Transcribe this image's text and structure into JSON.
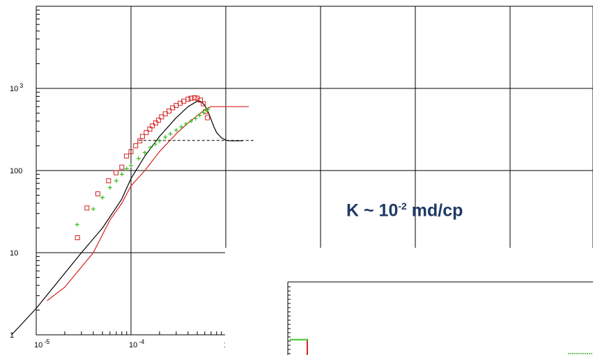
{
  "chart_data": {
    "type": "scatter",
    "xscale": "log",
    "yscale": "log",
    "xlim": [
      5e-06,
      0.002
    ],
    "ylim": [
      1,
      10000
    ],
    "x_tick_labels": [
      {
        "base": "10",
        "exp": "-5"
      },
      {
        "base": "10",
        "exp": "-4"
      },
      {
        "base": "1",
        "exp": ""
      }
    ],
    "y_tick_labels": [
      {
        "base": "10",
        "exp": "3"
      },
      {
        "base": "100",
        "exp": ""
      },
      {
        "base": "10",
        "exp": ""
      },
      {
        "base": "1",
        "exp": ""
      }
    ],
    "annotation": {
      "text_pre": "K ~ 10",
      "text_sup": "-2",
      "text_post": " md/cp"
    },
    "grid": true,
    "series": [
      {
        "kind": "line",
        "color": "#000000",
        "points": [
          [
            5.5e-06,
            1
          ],
          [
            1e-05,
            2.1
          ],
          [
            3e-05,
            10
          ],
          [
            5e-05,
            20
          ],
          [
            8e-05,
            45
          ],
          [
            0.0001,
            80
          ],
          [
            0.00014,
            150
          ],
          [
            0.0002,
            260
          ],
          [
            0.0003,
            440
          ],
          [
            0.0004,
            600
          ],
          [
            0.0005,
            700
          ],
          [
            0.00055,
            690
          ],
          [
            0.0006,
            620
          ],
          [
            0.00065,
            520
          ],
          [
            0.0007,
            420
          ],
          [
            0.00075,
            340
          ],
          [
            0.0008,
            290
          ],
          [
            0.0009,
            250
          ],
          [
            0.001,
            235
          ],
          [
            0.00109,
            230
          ],
          [
            0.0015,
            230
          ]
        ]
      },
      {
        "kind": "line",
        "color": "#d62020",
        "points": [
          [
            1.3e-05,
            2.6
          ],
          [
            2e-05,
            3.8
          ],
          [
            4e-05,
            10
          ],
          [
            6e-05,
            25
          ],
          [
            8e-05,
            40
          ],
          [
            0.0001,
            65
          ],
          [
            0.00014,
            100
          ],
          [
            0.0002,
            170
          ],
          [
            0.0003,
            280
          ],
          [
            0.0004,
            380
          ],
          [
            0.0006,
            550
          ],
          [
            0.0007,
            600
          ],
          [
            0.0012,
            600
          ],
          [
            0.00175,
            600
          ]
        ]
      },
      {
        "kind": "line",
        "color": "#808080",
        "dashed": true,
        "points": [
          [
            0.00012,
            233
          ],
          [
            0.002,
            233
          ]
        ]
      },
      {
        "kind": "markers",
        "marker": "square",
        "color": "#d62020",
        "points": [
          [
            2.72e-05,
            15.2
          ],
          [
            3.43e-05,
            35
          ],
          [
            4.47e-05,
            52
          ],
          [
            5.8e-05,
            75
          ],
          [
            6.95e-05,
            94
          ],
          [
            8e-05,
            110
          ],
          [
            8.97e-05,
            150
          ],
          [
            0.0001,
            170
          ],
          [
            0.000112,
            200
          ],
          [
            0.000124,
            230
          ],
          [
            0.000132,
            260
          ],
          [
            0.000145,
            290
          ],
          [
            0.000158,
            320
          ],
          [
            0.000168,
            350
          ],
          [
            0.000182,
            380
          ],
          [
            0.000195,
            410
          ],
          [
            0.00021,
            450
          ],
          [
            0.00023,
            490
          ],
          [
            0.000252,
            530
          ],
          [
            0.000275,
            580
          ],
          [
            0.0003,
            620
          ],
          [
            0.00033,
            660
          ],
          [
            0.00036,
            700
          ],
          [
            0.0004,
            740
          ],
          [
            0.00043,
            760
          ],
          [
            0.00047,
            770
          ],
          [
            0.0005,
            760
          ],
          [
            0.00054,
            720
          ],
          [
            0.00058,
            650
          ],
          [
            0.00061,
            520
          ],
          [
            0.00064,
            440
          ]
        ]
      },
      {
        "kind": "markers",
        "marker": "plus",
        "color": "#3cbe28",
        "points": [
          [
            2.7e-05,
            22
          ],
          [
            4e-05,
            34
          ],
          [
            5e-05,
            47
          ],
          [
            6e-05,
            62
          ],
          [
            7e-05,
            75
          ],
          [
            8e-05,
            90
          ],
          [
            9e-05,
            105
          ],
          [
            0.0001,
            115
          ],
          [
            0.00012,
            140
          ],
          [
            0.00014,
            165
          ],
          [
            0.00016,
            190
          ],
          [
            0.00018,
            210
          ],
          [
            0.0002,
            230
          ],
          [
            0.00023,
            255
          ],
          [
            0.00026,
            280
          ],
          [
            0.0003,
            310
          ],
          [
            0.00034,
            340
          ],
          [
            0.00038,
            370
          ],
          [
            0.00043,
            400
          ],
          [
            0.00048,
            430
          ],
          [
            0.00053,
            470
          ],
          [
            0.00058,
            510
          ],
          [
            0.00062,
            540
          ],
          [
            0.00065,
            560
          ]
        ]
      }
    ]
  },
  "inset": {
    "green_marker_points": [
      [
        0.00021,
        0.22
      ]
    ],
    "red_step_color": "#d62020",
    "green_color": "#3cbe28"
  }
}
